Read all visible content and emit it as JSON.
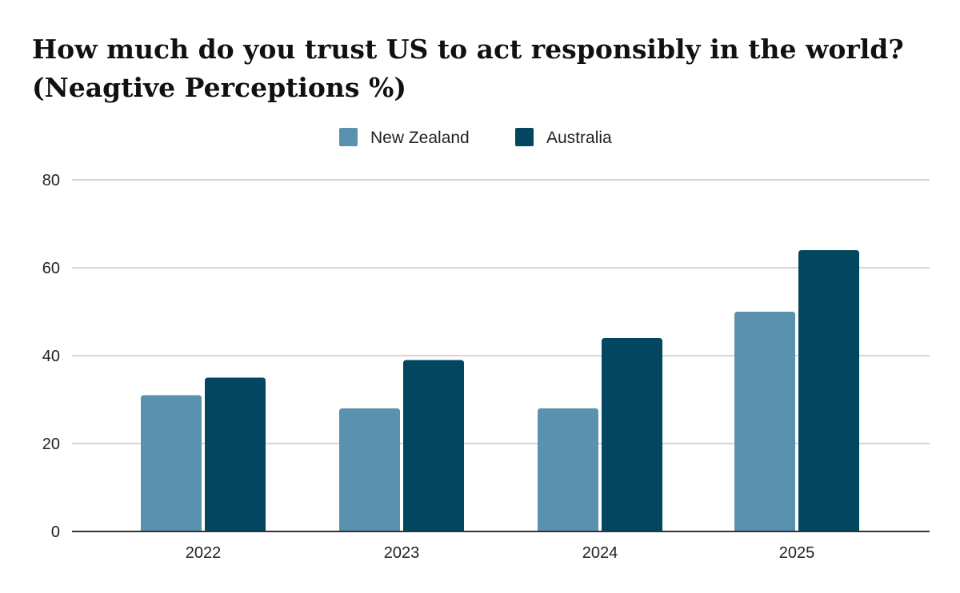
{
  "chart_data": {
    "type": "bar",
    "title_lines": [
      "How much do you trust US to act responsibly in the world?",
      "(Neagtive Perceptions %)"
    ],
    "categories": [
      "2022",
      "2023",
      "2024",
      "2025"
    ],
    "series": [
      {
        "name": "New Zealand",
        "color": "#5a91ae",
        "values": [
          31,
          28,
          28,
          50
        ]
      },
      {
        "name": "Australia",
        "color": "#02465f",
        "values": [
          35,
          39,
          44,
          64
        ]
      }
    ],
    "ylim": [
      0,
      80
    ],
    "yticks": [
      0,
      20,
      40,
      60,
      80
    ],
    "grid": true,
    "legend": "top-center",
    "xlabel": "",
    "ylabel": ""
  }
}
